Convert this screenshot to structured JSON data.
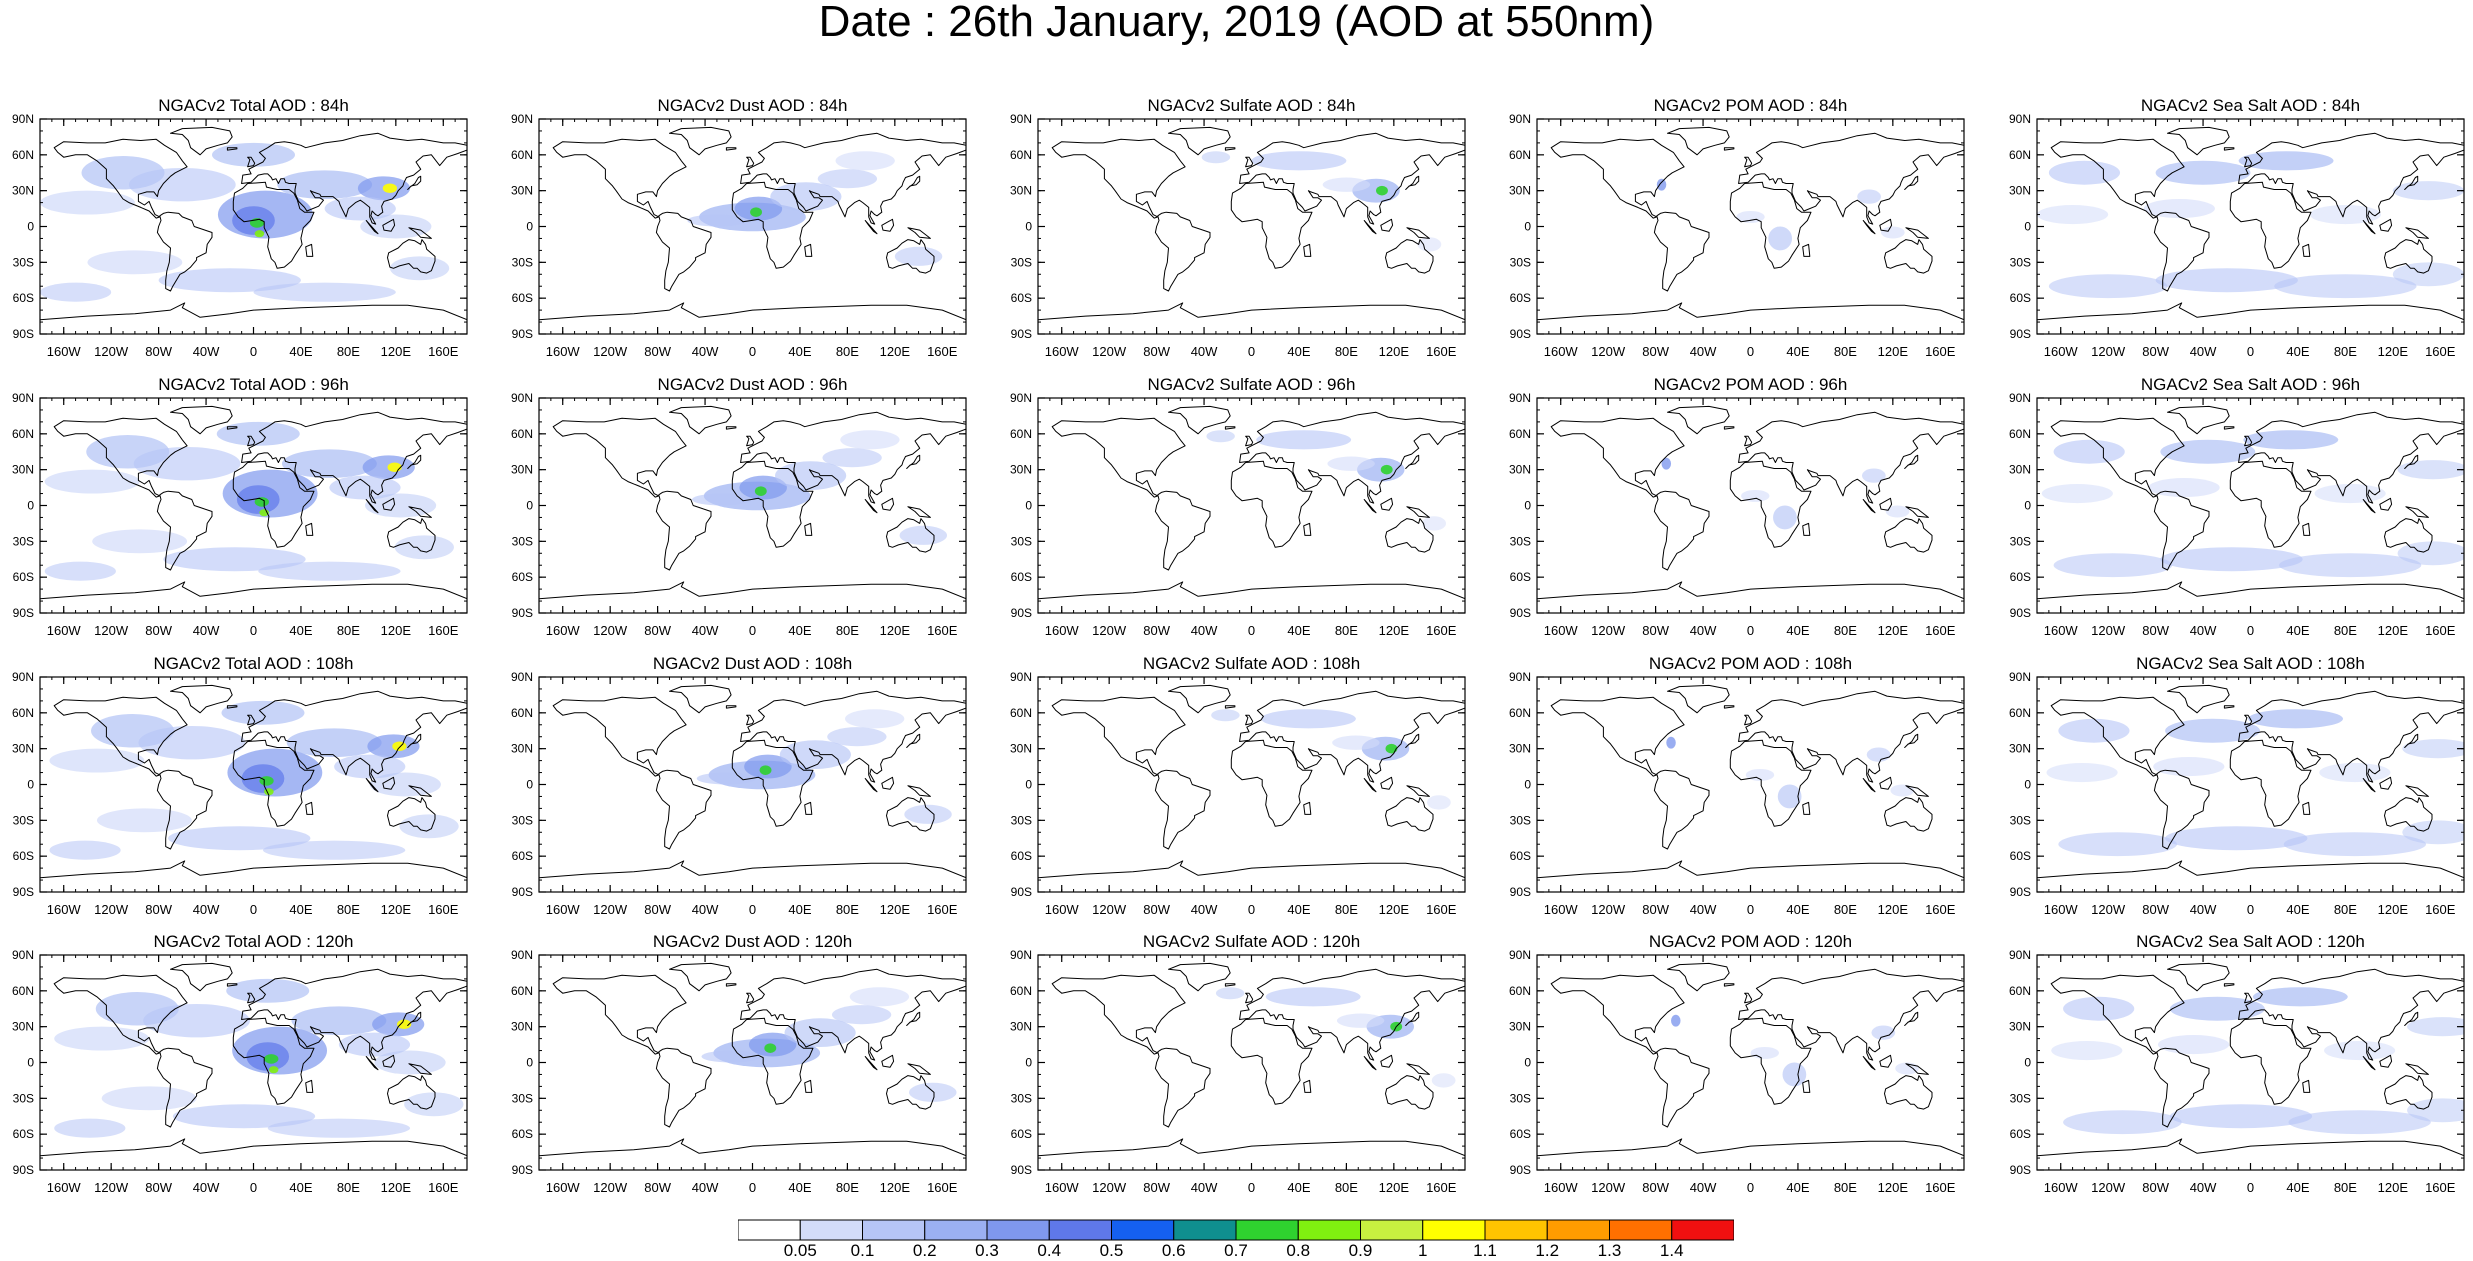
{
  "figure_title": "Date : 26th January, 2019 (AOD at 550nm)",
  "columns": [
    {
      "key": "total",
      "color": "#5f7de6"
    },
    {
      "key": "dust",
      "color": "#6a86e8"
    },
    {
      "key": "sulfate",
      "color": "#6c88e8"
    },
    {
      "key": "pom",
      "color": "#8da5ee"
    },
    {
      "key": "seasalt",
      "color": "#7d98ec"
    }
  ],
  "panels": [
    [
      "NGACv2 Total AOD : 84h",
      "NGACv2 Dust AOD : 84h",
      "NGACv2 Sulfate AOD : 84h",
      "NGACv2 POM AOD : 84h",
      "NGACv2 Sea Salt AOD : 84h"
    ],
    [
      "NGACv2 Total AOD : 96h",
      "NGACv2 Dust AOD : 96h",
      "NGACv2 Sulfate AOD : 96h",
      "NGACv2 POM AOD : 96h",
      "NGACv2 Sea Salt AOD : 96h"
    ],
    [
      "NGACv2 Total AOD : 108h",
      "NGACv2 Dust AOD : 108h",
      "NGACv2 Sulfate AOD : 108h",
      "NGACv2 POM AOD : 108h",
      "NGACv2 Sea Salt AOD : 108h"
    ],
    [
      "NGACv2 Total AOD : 120h",
      "NGACv2 Dust AOD : 120h",
      "NGACv2 Sulfate AOD : 120h",
      "NGACv2 POM AOD : 120h",
      "NGACv2 Sea Salt  AOD : 120h"
    ]
  ],
  "lat_ticks": [
    "90N",
    "60N",
    "30N",
    "0",
    "30S",
    "60S",
    "90S"
  ],
  "lon_ticks": [
    "160W",
    "120W",
    "80W",
    "40W",
    "0",
    "40E",
    "80E",
    "120E",
    "160E"
  ],
  "lat_values": [
    90,
    60,
    30,
    0,
    -30,
    -60,
    -90
  ],
  "lon_values": [
    -160,
    -120,
    -80,
    -40,
    0,
    40,
    80,
    120,
    160
  ],
  "colorbar": {
    "labels": [
      "0.05",
      "0.1",
      "0.2",
      "0.3",
      "0.4",
      "0.5",
      "0.6",
      "0.7",
      "0.8",
      "0.9",
      "1",
      "1.1",
      "1.2",
      "1.3",
      "1.4"
    ],
    "colors": [
      "#ffffff",
      "#d3dcfa",
      "#b6c5f6",
      "#9bb0f2",
      "#7f98ee",
      "#5f78ea",
      "#1560f0",
      "#0f8f8f",
      "#2fd22f",
      "#80f010",
      "#c8f040",
      "#ffff00",
      "#ffc400",
      "#ff9c00",
      "#ff7000",
      "#f01010"
    ]
  }
}
